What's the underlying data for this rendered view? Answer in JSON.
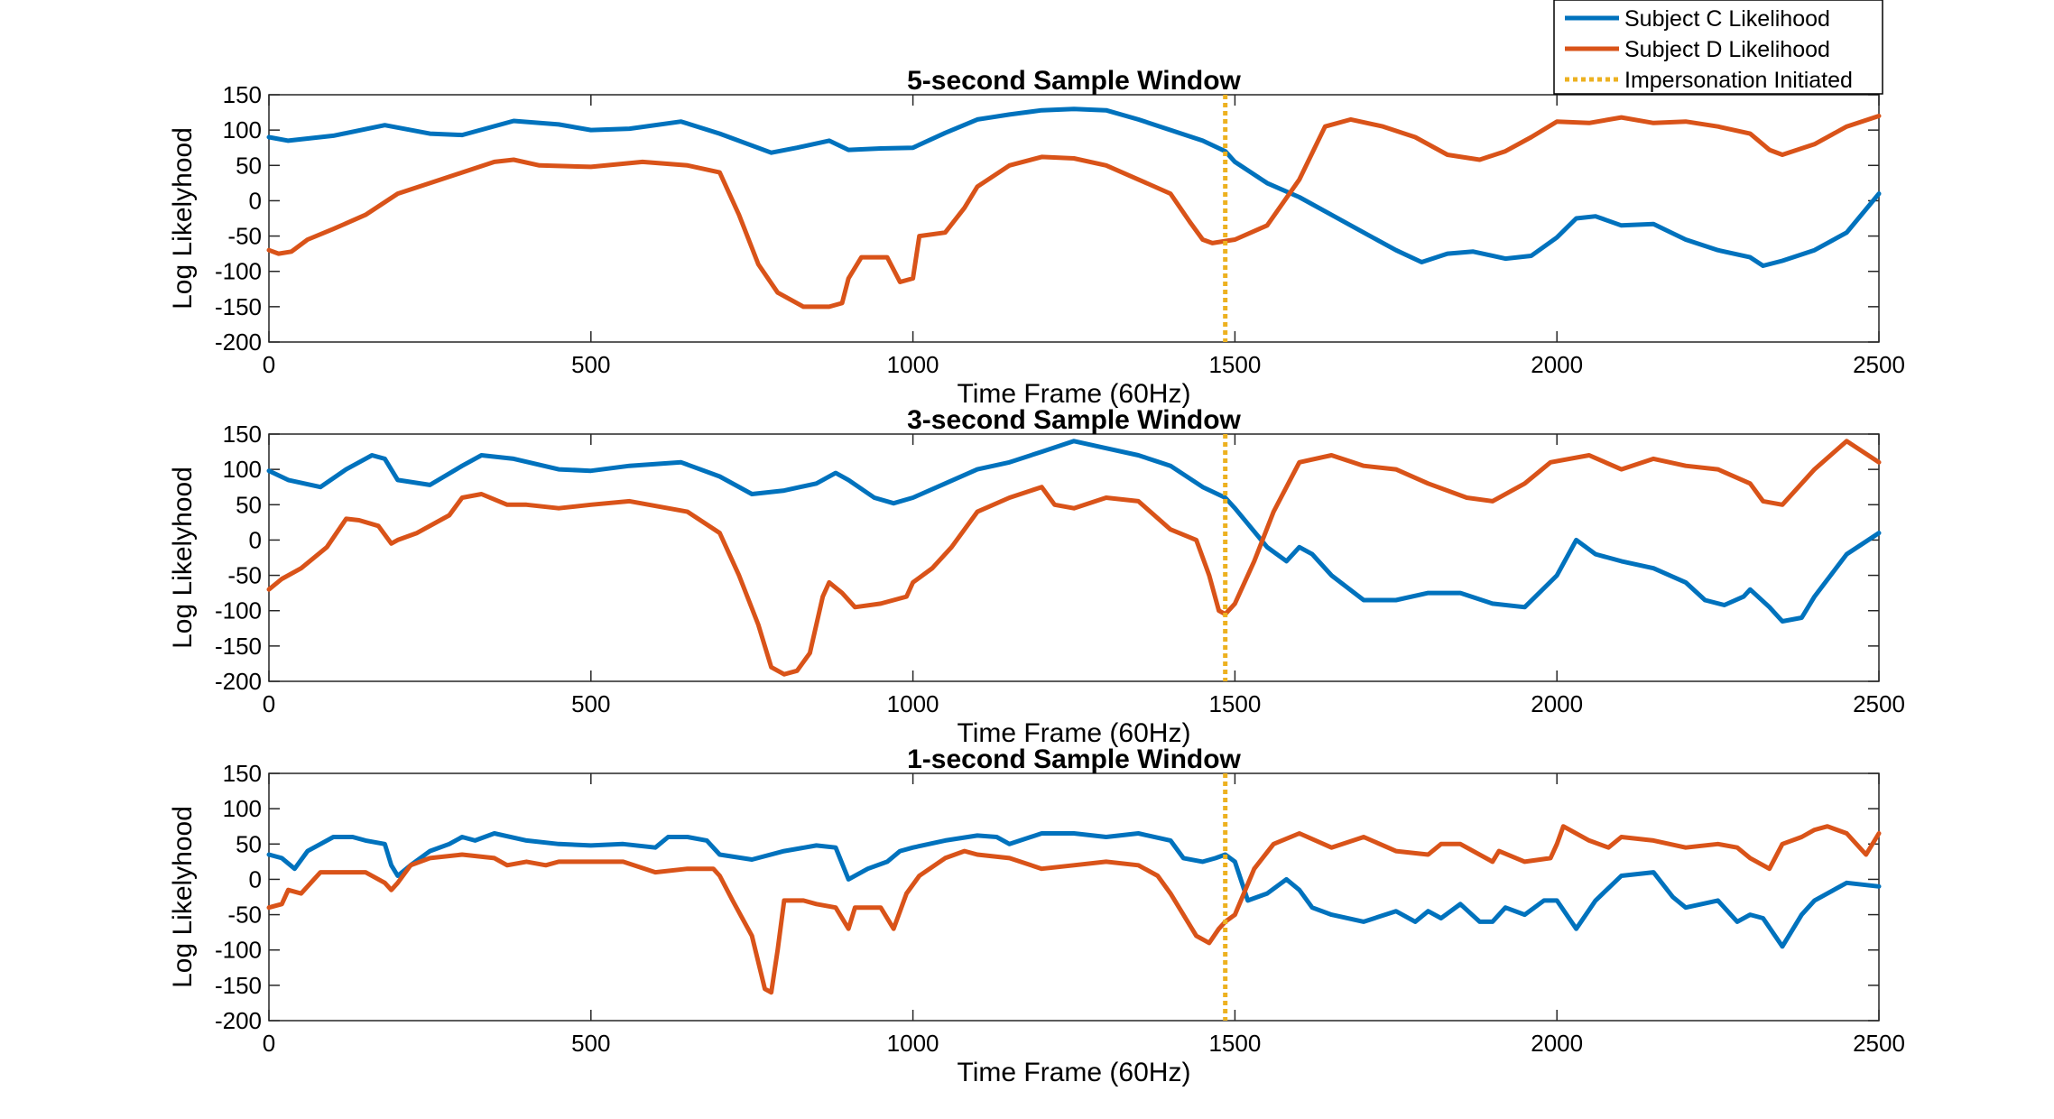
{
  "chart_data": {
    "type": "line",
    "legend": {
      "placement": "top-right",
      "entries": [
        {
          "label": "Subject C Likelihood",
          "color": "#0072BD",
          "style": "solid"
        },
        {
          "label": "Subject D Likelihood",
          "color": "#D95319",
          "style": "solid"
        },
        {
          "label": "Impersonation Initiated",
          "color": "#EDB120",
          "style": "dotted"
        }
      ]
    },
    "panels": [
      {
        "title": "5-second Sample Window",
        "xlabel": "Time Frame (60Hz)",
        "ylabel": "Log Likelyhood",
        "xlim": [
          0,
          2500
        ],
        "ylim": [
          -200,
          150
        ],
        "xticks": [
          0,
          500,
          1000,
          1500,
          2000,
          2500
        ],
        "yticks": [
          150,
          100,
          50,
          0,
          -50,
          -100,
          -150,
          -200
        ],
        "impersonation_x": 1485,
        "series": [
          {
            "name": "Subject C Likelihood",
            "x": [
              0,
              30,
              100,
              180,
              250,
              300,
              380,
              450,
              500,
              560,
              640,
              700,
              780,
              820,
              870,
              900,
              950,
              1000,
              1050,
              1100,
              1150,
              1200,
              1250,
              1300,
              1350,
              1400,
              1450,
              1485,
              1500,
              1550,
              1600,
              1650,
              1700,
              1750,
              1790,
              1830,
              1870,
              1920,
              1960,
              2000,
              2030,
              2060,
              2100,
              2150,
              2200,
              2250,
              2300,
              2320,
              2350,
              2400,
              2450,
              2500
            ],
            "values": [
              90,
              85,
              92,
              107,
              95,
              93,
              113,
              108,
              100,
              102,
              112,
              95,
              68,
              75,
              85,
              72,
              74,
              75,
              96,
              115,
              122,
              128,
              130,
              128,
              115,
              100,
              85,
              70,
              55,
              25,
              5,
              -20,
              -45,
              -70,
              -87,
              -75,
              -72,
              -82,
              -78,
              -52,
              -25,
              -22,
              -35,
              -33,
              -55,
              -70,
              -80,
              -92,
              -85,
              -70,
              -45,
              10
            ]
          },
          {
            "name": "Subject D Likelihood",
            "x": [
              0,
              15,
              35,
              60,
              100,
              150,
              200,
              250,
              300,
              350,
              380,
              420,
              500,
              580,
              650,
              700,
              730,
              760,
              790,
              830,
              870,
              890,
              900,
              920,
              940,
              960,
              980,
              1000,
              1010,
              1050,
              1080,
              1100,
              1150,
              1200,
              1250,
              1300,
              1350,
              1400,
              1430,
              1450,
              1465,
              1485,
              1500,
              1550,
              1600,
              1640,
              1680,
              1730,
              1780,
              1830,
              1880,
              1920,
              1960,
              2000,
              2050,
              2100,
              2150,
              2200,
              2250,
              2300,
              2330,
              2350,
              2400,
              2450,
              2500
            ],
            "values": [
              -70,
              -75,
              -72,
              -55,
              -40,
              -20,
              10,
              25,
              40,
              55,
              58,
              50,
              48,
              55,
              50,
              40,
              -20,
              -90,
              -130,
              -150,
              -150,
              -145,
              -110,
              -80,
              -80,
              -80,
              -115,
              -110,
              -50,
              -45,
              -10,
              20,
              50,
              62,
              60,
              50,
              30,
              10,
              -30,
              -55,
              -60,
              -57,
              -55,
              -35,
              30,
              105,
              115,
              105,
              90,
              65,
              58,
              70,
              90,
              112,
              110,
              118,
              110,
              112,
              105,
              95,
              72,
              65,
              80,
              105,
              120
            ]
          },
          {
            "name": "Impersonation Initiated"
          }
        ]
      },
      {
        "title": "3-second Sample Window",
        "xlabel": "Time Frame (60Hz)",
        "ylabel": "Log Likelyhood",
        "xlim": [
          0,
          2500
        ],
        "ylim": [
          -200,
          150
        ],
        "xticks": [
          0,
          500,
          1000,
          1500,
          2000,
          2500
        ],
        "yticks": [
          150,
          100,
          50,
          0,
          -50,
          -100,
          -150,
          -200
        ],
        "impersonation_x": 1485,
        "series": [
          {
            "name": "Subject C Likelihood",
            "x": [
              0,
              30,
              80,
              120,
              160,
              180,
              200,
              250,
              300,
              330,
              380,
              450,
              500,
              560,
              640,
              700,
              750,
              800,
              850,
              880,
              900,
              940,
              970,
              1000,
              1050,
              1100,
              1150,
              1200,
              1250,
              1300,
              1350,
              1400,
              1450,
              1485,
              1500,
              1550,
              1580,
              1600,
              1620,
              1650,
              1700,
              1750,
              1800,
              1850,
              1900,
              1950,
              2000,
              2030,
              2060,
              2100,
              2150,
              2200,
              2230,
              2260,
              2290,
              2300,
              2330,
              2350,
              2380,
              2400,
              2450,
              2500
            ],
            "values": [
              98,
              85,
              75,
              100,
              120,
              115,
              85,
              78,
              105,
              120,
              115,
              100,
              98,
              105,
              110,
              90,
              65,
              70,
              80,
              95,
              85,
              60,
              52,
              60,
              80,
              100,
              110,
              125,
              140,
              130,
              120,
              105,
              75,
              60,
              45,
              -10,
              -30,
              -10,
              -20,
              -50,
              -85,
              -85,
              -75,
              -75,
              -90,
              -95,
              -50,
              0,
              -20,
              -30,
              -40,
              -60,
              -85,
              -92,
              -80,
              -70,
              -95,
              -115,
              -110,
              -80,
              -20,
              10
            ]
          },
          {
            "name": "Subject D Likelihood",
            "x": [
              0,
              20,
              50,
              90,
              120,
              140,
              170,
              190,
              200,
              230,
              280,
              300,
              330,
              370,
              400,
              450,
              500,
              560,
              620,
              650,
              700,
              730,
              760,
              780,
              800,
              820,
              840,
              860,
              870,
              890,
              910,
              950,
              990,
              1000,
              1030,
              1060,
              1100,
              1150,
              1200,
              1220,
              1250,
              1300,
              1350,
              1400,
              1440,
              1460,
              1475,
              1485,
              1500,
              1530,
              1560,
              1600,
              1650,
              1700,
              1750,
              1800,
              1860,
              1900,
              1950,
              1990,
              2050,
              2100,
              2150,
              2200,
              2250,
              2300,
              2320,
              2350,
              2400,
              2450,
              2500
            ],
            "values": [
              -70,
              -55,
              -40,
              -10,
              30,
              28,
              20,
              -5,
              0,
              10,
              35,
              60,
              65,
              50,
              50,
              45,
              50,
              55,
              45,
              40,
              10,
              -50,
              -120,
              -180,
              -190,
              -185,
              -160,
              -80,
              -60,
              -75,
              -95,
              -90,
              -80,
              -60,
              -40,
              -10,
              40,
              60,
              75,
              50,
              45,
              60,
              55,
              15,
              0,
              -50,
              -100,
              -105,
              -90,
              -30,
              40,
              110,
              120,
              105,
              100,
              80,
              60,
              55,
              80,
              110,
              120,
              100,
              115,
              105,
              100,
              80,
              55,
              50,
              100,
              140,
              110
            ]
          },
          {
            "name": "Impersonation Initiated"
          }
        ]
      },
      {
        "title": "1-second Sample Window",
        "xlabel": "Time Frame (60Hz)",
        "ylabel": "Log Likelyhood",
        "xlim": [
          0,
          2500
        ],
        "ylim": [
          -200,
          150
        ],
        "xticks": [
          0,
          500,
          1000,
          1500,
          2000,
          2500
        ],
        "yticks": [
          150,
          100,
          50,
          0,
          -50,
          -100,
          -150,
          -200
        ],
        "impersonation_x": 1485,
        "series": [
          {
            "name": "Subject C Likelihood",
            "x": [
              0,
              20,
              40,
              60,
              80,
              100,
              130,
              150,
              180,
              190,
              200,
              220,
              250,
              280,
              300,
              320,
              350,
              400,
              450,
              500,
              550,
              600,
              620,
              650,
              680,
              700,
              750,
              800,
              850,
              880,
              900,
              930,
              960,
              980,
              1000,
              1050,
              1100,
              1130,
              1150,
              1200,
              1250,
              1300,
              1350,
              1400,
              1420,
              1450,
              1470,
              1485,
              1500,
              1520,
              1550,
              1580,
              1600,
              1620,
              1650,
              1700,
              1750,
              1780,
              1800,
              1820,
              1850,
              1880,
              1900,
              1920,
              1950,
              1980,
              2000,
              2030,
              2060,
              2100,
              2150,
              2180,
              2200,
              2250,
              2280,
              2300,
              2320,
              2350,
              2380,
              2400,
              2450,
              2500
            ],
            "values": [
              35,
              30,
              15,
              40,
              50,
              60,
              60,
              55,
              50,
              20,
              5,
              20,
              40,
              50,
              60,
              55,
              65,
              55,
              50,
              48,
              50,
              45,
              60,
              60,
              55,
              35,
              28,
              40,
              48,
              45,
              0,
              15,
              25,
              40,
              45,
              55,
              62,
              60,
              50,
              65,
              65,
              60,
              65,
              55,
              30,
              25,
              30,
              35,
              25,
              -30,
              -20,
              0,
              -15,
              -40,
              -50,
              -60,
              -45,
              -60,
              -45,
              -55,
              -35,
              -60,
              -60,
              -40,
              -50,
              -30,
              -30,
              -70,
              -30,
              5,
              10,
              -25,
              -40,
              -30,
              -60,
              -50,
              -55,
              -95,
              -50,
              -30,
              -5,
              -10
            ]
          },
          {
            "name": "Subject D Likelihood",
            "x": [
              0,
              20,
              30,
              50,
              80,
              100,
              150,
              180,
              190,
              200,
              220,
              250,
              300,
              350,
              370,
              400,
              430,
              450,
              500,
              550,
              600,
              650,
              690,
              700,
              720,
              750,
              770,
              780,
              790,
              800,
              830,
              850,
              880,
              900,
              910,
              950,
              970,
              990,
              1010,
              1050,
              1080,
              1100,
              1150,
              1200,
              1250,
              1300,
              1350,
              1380,
              1400,
              1420,
              1440,
              1460,
              1475,
              1485,
              1500,
              1530,
              1560,
              1600,
              1650,
              1700,
              1750,
              1800,
              1820,
              1850,
              1900,
              1910,
              1950,
              1990,
              2000,
              2010,
              2050,
              2080,
              2100,
              2150,
              2200,
              2250,
              2280,
              2300,
              2330,
              2350,
              2380,
              2400,
              2420,
              2450,
              2480,
              2500
            ],
            "values": [
              -40,
              -35,
              -15,
              -20,
              10,
              10,
              10,
              -5,
              -15,
              -5,
              20,
              30,
              35,
              30,
              20,
              25,
              20,
              25,
              25,
              25,
              10,
              15,
              15,
              5,
              -30,
              -80,
              -155,
              -160,
              -100,
              -30,
              -30,
              -35,
              -40,
              -70,
              -40,
              -40,
              -70,
              -20,
              5,
              30,
              40,
              35,
              30,
              15,
              20,
              25,
              20,
              5,
              -20,
              -50,
              -80,
              -90,
              -70,
              -60,
              -50,
              15,
              50,
              65,
              45,
              60,
              40,
              35,
              50,
              50,
              25,
              40,
              25,
              30,
              50,
              75,
              55,
              45,
              60,
              55,
              45,
              50,
              45,
              30,
              15,
              50,
              60,
              70,
              75,
              65,
              35,
              65
            ]
          },
          {
            "name": "Impersonation Initiated"
          }
        ]
      }
    ]
  }
}
